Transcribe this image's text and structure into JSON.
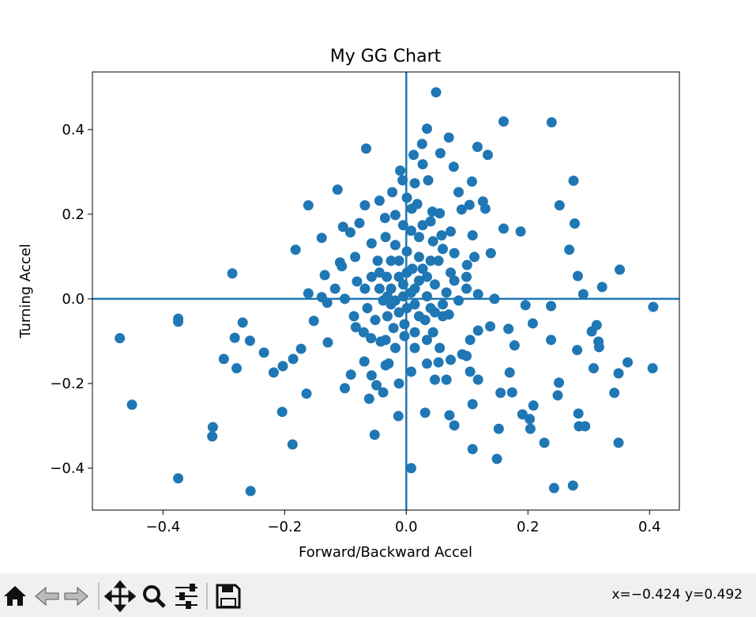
{
  "chart_data": {
    "type": "scatter",
    "title": "My GG Chart",
    "xlabel": "Forward/Backward Accel",
    "ylabel": "Turning Accel",
    "color": "#1f77b4",
    "xlim": [
      -0.516,
      0.449
    ],
    "ylim": [
      -0.499,
      0.536
    ],
    "xticks": [
      {
        "value": -0.4,
        "label": "−0.4"
      },
      {
        "value": -0.2,
        "label": "−0.2"
      },
      {
        "value": 0,
        "label": "0.0"
      },
      0.2,
      0.4
    ],
    "yticks": [
      {
        "value": -0.4,
        "label": "−0.4"
      },
      {
        "value": -0.2,
        "label": "−0.2"
      },
      {
        "value": 0,
        "label": "0.0"
      },
      0.2,
      0.4
    ],
    "hlines": [
      0
    ],
    "vlines": [
      0
    ],
    "x": [
      -0.471,
      -0.451,
      -0.375,
      -0.375,
      -0.375,
      -0.318,
      -0.319,
      -0.3,
      -0.286,
      -0.282,
      -0.279,
      -0.269,
      -0.257,
      -0.256,
      -0.234,
      -0.218,
      -0.204,
      -0.203,
      -0.187,
      -0.186,
      -0.182,
      -0.173,
      -0.164,
      -0.161,
      -0.161,
      -0.152,
      -0.139,
      -0.139,
      -0.134,
      -0.13,
      -0.129,
      -0.117,
      -0.113,
      -0.109,
      -0.106,
      -0.104,
      -0.101,
      -0.101,
      -0.092,
      -0.091,
      -0.084,
      -0.083,
      -0.081,
      -0.077,
      -0.069,
      -0.068,
      -0.066,
      -0.061,
      -0.058,
      -0.052,
      -0.049,
      -0.057,
      -0.044,
      -0.042,
      -0.038,
      -0.035,
      -0.029,
      -0.023,
      -0.013,
      -0.01,
      -0.012,
      -0.006,
      0.008,
      0.009,
      0.012,
      0.014,
      0.026,
      0.027,
      0.031,
      0.034,
      0.036,
      0.043,
      0.049,
      0.056,
      0.058,
      0.07,
      0.071,
      0.078,
      0.079,
      0.086,
      0.091,
      0.1,
      0.104,
      0.108,
      0.109,
      0.109,
      0.117,
      0.126,
      0.13,
      0.134,
      0.139,
      0.145,
      0.152,
      0.149,
      0.155,
      0.16,
      0.16,
      0.168,
      0.17,
      0.174,
      0.178,
      0.188,
      0.191,
      0.196,
      0.203,
      0.204,
      0.208,
      0.209,
      0.227,
      0.238,
      0.238,
      0.239,
      0.243,
      0.249,
      0.251,
      0.252,
      0.268,
      0.274,
      0.275,
      0.277,
      0.281,
      0.282,
      0.283,
      0.284,
      0.294,
      0.291,
      0.305,
      0.308,
      0.313,
      0.316,
      0.317,
      0.322,
      0.342,
      0.349,
      0.349,
      0.351,
      0.364,
      0.405,
      0.406,
      -0.032,
      -0.025,
      -0.018,
      -0.012,
      -0.005,
      0.001,
      0.008,
      0.014,
      0.021,
      0.027,
      0.034,
      0.04,
      0.047,
      0.053,
      -0.038,
      -0.044,
      -0.031,
      -0.021,
      -0.003,
      0.014,
      0.031,
      0.044,
      0.06,
      0.066,
      0.073,
      0.079,
      0.086,
      0.06,
      0.044,
      0.021,
      0.001,
      -0.018,
      -0.025,
      -0.047,
      -0.057,
      -0.068,
      -0.064,
      -0.051,
      -0.034,
      -0.018,
      -0.003,
      0.014,
      0.034,
      0.055,
      0.073,
      0.092,
      0.105,
      0.118,
      0.138,
      0.099,
      0.112,
      0.109,
      0.073,
      0.04,
      0.008,
      -0.018,
      -0.034,
      0.001,
      0.018,
      0.055,
      0.079,
      0.099,
      0.118,
      -0.07,
      -0.086,
      0.034,
      0.053,
      0.008,
      0.047,
      0.066,
      0.099,
      0.118,
      0.105,
      -0.034,
      -0.057,
      0.027,
      -0.005,
      0.021,
      0.04,
      0.01,
      -0.012,
      -0.044,
      0.034,
      0.014,
      -0.005,
      -0.025,
      0.001,
      0.021,
      0.047,
      0.06,
      0.07,
      -0.012,
      -0.031
    ],
    "values": [
      -0.093,
      -0.25,
      -0.047,
      -0.054,
      -0.424,
      -0.303,
      -0.325,
      -0.142,
      0.06,
      -0.092,
      -0.164,
      -0.056,
      -0.099,
      -0.454,
      -0.127,
      -0.174,
      -0.267,
      -0.159,
      -0.344,
      -0.142,
      0.116,
      -0.118,
      -0.224,
      0.221,
      0.013,
      -0.052,
      0.144,
      0.004,
      0.056,
      -0.009,
      -0.103,
      0.024,
      0.258,
      0.086,
      0.077,
      0.17,
      -0.211,
      0.0,
      0.157,
      -0.179,
      0.099,
      -0.067,
      0.041,
      0.179,
      -0.148,
      0.221,
      0.355,
      -0.236,
      -0.093,
      -0.321,
      -0.204,
      0.131,
      0.232,
      -0.101,
      -0.221,
      0.191,
      -0.153,
      0.252,
      -0.277,
      0.303,
      -0.2,
      0.28,
      -0.4,
      0.213,
      0.34,
      0.273,
      0.366,
      0.318,
      -0.269,
      0.402,
      0.28,
      0.206,
      0.488,
      0.344,
      0.15,
      0.381,
      -0.275,
      0.312,
      -0.299,
      0.252,
      0.211,
      0.08,
      0.222,
      0.277,
      -0.249,
      -0.355,
      0.359,
      0.23,
      0.213,
      0.34,
      0.108,
      0.0,
      -0.307,
      -0.378,
      -0.222,
      0.419,
      0.166,
      -0.071,
      -0.174,
      -0.221,
      -0.11,
      0.159,
      -0.273,
      -0.015,
      -0.284,
      -0.307,
      -0.058,
      -0.252,
      -0.34,
      -0.017,
      -0.097,
      0.417,
      -0.447,
      -0.228,
      -0.198,
      0.221,
      0.116,
      -0.441,
      0.279,
      0.178,
      -0.121,
      0.054,
      -0.271,
      -0.301,
      -0.301,
      0.011,
      -0.077,
      -0.164,
      -0.062,
      -0.101,
      -0.114,
      0.028,
      -0.222,
      -0.34,
      -0.176,
      0.069,
      -0.15,
      -0.164,
      -0.019,
      0.052,
      0.024,
      -0.004,
      -0.032,
      0.034,
      0.062,
      0.015,
      -0.013,
      0.043,
      0.071,
      0.006,
      -0.022,
      0.034,
      0.09,
      -0.004,
      0.024,
      -0.041,
      -0.069,
      -0.06,
      -0.079,
      -0.05,
      -0.079,
      -0.041,
      0.015,
      0.062,
      0.043,
      -0.004,
      0.118,
      0.136,
      0.146,
      0.112,
      0.127,
      0.09,
      0.09,
      0.052,
      0.024,
      -0.022,
      -0.05,
      -0.097,
      -0.116,
      -0.088,
      -0.116,
      -0.097,
      -0.116,
      -0.144,
      -0.131,
      -0.097,
      -0.075,
      -0.065,
      0.024,
      0.099,
      0.15,
      0.159,
      0.183,
      0.161,
      0.198,
      0.146,
      0.239,
      0.224,
      0.202,
      0.108,
      0.052,
      0.011,
      -0.079,
      -0.041,
      -0.153,
      -0.15,
      -0.172,
      -0.191,
      -0.191,
      -0.135,
      -0.191,
      -0.172,
      -0.157,
      -0.181,
      0.174,
      0.174,
      0.099,
      0.09,
      0.071,
      0.052,
      0.062,
      0.052,
      0.024,
      0.006,
      -0.013,
      -0.022,
      -0.041,
      -0.032,
      -0.013,
      -0.037,
      0.09,
      0.006
    ]
  },
  "status_bar": {
    "text": "x=−0.424 y=0.492"
  }
}
